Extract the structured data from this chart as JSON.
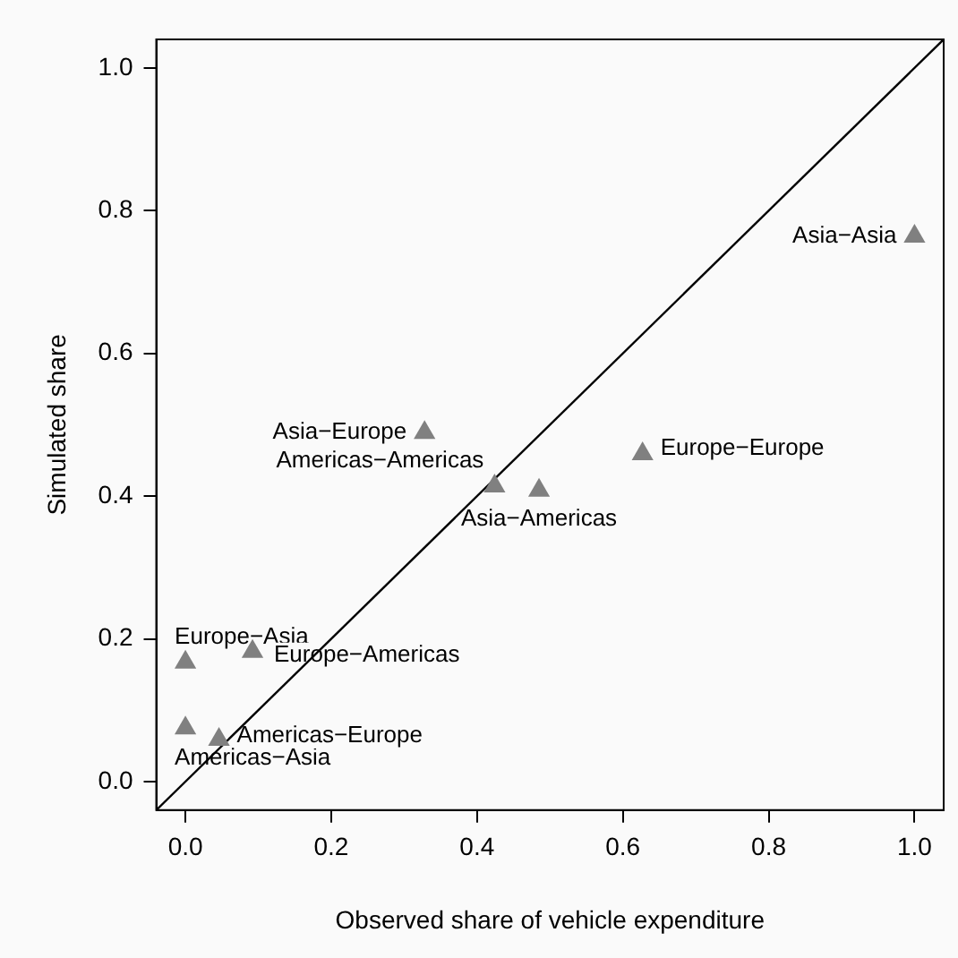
{
  "chart_data": {
    "type": "scatter",
    "xlabel": "Observed share of vehicle expenditure",
    "ylabel": "Simulated share",
    "xlim": [
      -0.04,
      1.04
    ],
    "ylim": [
      -0.04,
      1.04
    ],
    "xticks": [
      {
        "value": 0,
        "label": "0.0"
      },
      {
        "value": 0.2,
        "label": "0.2"
      },
      {
        "value": 0.4,
        "label": "0.4"
      },
      {
        "value": 0.6,
        "label": "0.6"
      },
      {
        "value": 0.8,
        "label": "0.8"
      },
      {
        "value": 1,
        "label": "1.0"
      }
    ],
    "yticks": [
      {
        "value": 0,
        "label": "0.0"
      },
      {
        "value": 0.2,
        "label": "0.2"
      },
      {
        "value": 0.4,
        "label": "0.4"
      },
      {
        "value": 0.6,
        "label": "0.6"
      },
      {
        "value": 0.8,
        "label": "0.8"
      },
      {
        "value": 1,
        "label": "1.0"
      }
    ],
    "grid": false,
    "legend": false,
    "series": [
      {
        "color": "#808080",
        "marker": "triangle",
        "x": [
          1.0,
          0.328,
          0.627,
          0.424,
          0.485,
          0.0,
          0.092,
          0.0,
          0.046
        ],
        "values": [
          0.764,
          0.489,
          0.459,
          0.414,
          0.408,
          0.167,
          0.182,
          0.075,
          0.059
        ]
      },
      {
        "type": "line",
        "color": "#000000",
        "marker": "none",
        "line_style": "solid",
        "x": [
          -0.04,
          1.04
        ],
        "values": [
          -0.04,
          1.04
        ]
      }
    ],
    "annotations": [
      {
        "text": "Asia−Asia",
        "x": 1.0,
        "y": 0.764
      },
      {
        "text": "Asia−Europe",
        "x": 0.328,
        "y": 0.489
      },
      {
        "text": "Europe−Europe",
        "x": 0.627,
        "y": 0.459
      },
      {
        "text": "Americas−Americas",
        "x": 0.424,
        "y": 0.414
      },
      {
        "text": "Asia−Americas",
        "x": 0.485,
        "y": 0.408
      },
      {
        "text": "Europe−Asia",
        "x": 0.0,
        "y": 0.167
      },
      {
        "text": "Europe−Americas",
        "x": 0.092,
        "y": 0.182
      },
      {
        "text": "Americas−Asia",
        "x": 0.0,
        "y": 0.075
      },
      {
        "text": "Americas−Europe",
        "x": 0.046,
        "y": 0.059
      }
    ]
  }
}
